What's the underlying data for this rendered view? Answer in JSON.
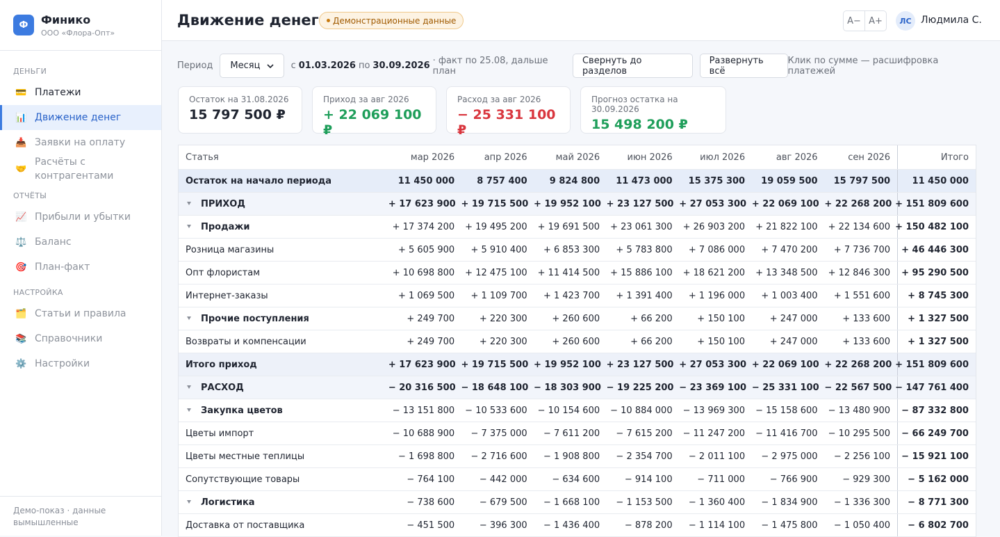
{
  "sidebar": {
    "logo": "Ф",
    "app": "Финико",
    "org": "ООО «Флора-Опт»",
    "sections": [
      {
        "title": "ДЕНЬГИ",
        "items": [
          {
            "icon": "💳",
            "label": "Платежи"
          },
          {
            "icon": "📊",
            "label": "Движение денег",
            "active": true
          },
          {
            "icon": "📥",
            "label": "Заявки на оплату",
            "disabled": true
          },
          {
            "icon": "🤝",
            "label": "Расчёты с контрагентами",
            "disabled": true
          }
        ]
      },
      {
        "title": "ОТЧЁТЫ",
        "items": [
          {
            "icon": "📈",
            "label": "Прибыли и убытки",
            "disabled": true
          },
          {
            "icon": "⚖️",
            "label": "Баланс",
            "disabled": true
          },
          {
            "icon": "🎯",
            "label": "План-факт",
            "disabled": true
          }
        ]
      },
      {
        "title": "НАСТРОЙКА",
        "items": [
          {
            "icon": "🗂️",
            "label": "Статьи и правила",
            "disabled": true
          },
          {
            "icon": "📚",
            "label": "Справочники",
            "disabled": true
          },
          {
            "icon": "⚙️",
            "label": "Настройки",
            "disabled": true
          }
        ]
      }
    ],
    "footer": "Демо-показ · данные вымышленные"
  },
  "header": {
    "title": "Движение денег",
    "badge": "Демонстрационные данные",
    "font_minus": "A−",
    "font_plus": "A+",
    "avatar": "ЛС",
    "user": "Людмила С."
  },
  "toolbar": {
    "period_label": "Период",
    "period": "Месяц",
    "from_word": "с",
    "from": "01.03.2026",
    "to_word": "по",
    "to": "30.09.2026",
    "note": "· факт по 25.08, дальше план",
    "collapse": "Свернуть до разделов",
    "expand": "Развернуть всё",
    "hint": "Клик по сумме — расшифровка платежей"
  },
  "cards": [
    {
      "label": "Остаток на 31.08.2026",
      "value": "15 797 500 ₽",
      "tone": "neutral"
    },
    {
      "label": "Приход за авг 2026",
      "value": "+ 22 069 100 ₽",
      "tone": "positive"
    },
    {
      "label": "Расход за авг 2026",
      "value": "− 25 331 100 ₽",
      "tone": "negative"
    },
    {
      "label": "Прогноз остатка на 30.09.2026",
      "value": "15 498 200 ₽",
      "tone": "positive"
    }
  ],
  "table": {
    "columns": [
      "Статья",
      "мар 2026",
      "апр 2026",
      "май 2026",
      "июн 2026",
      "июл 2026",
      "авг 2026",
      "сен 2026",
      "Итого"
    ],
    "rows": [
      {
        "kind": "balance",
        "label": "Остаток на начало периода",
        "cells": [
          "11 450 000",
          "8 757 400",
          "9 824 800",
          "11 473 000",
          "15 375 300",
          "19 059 500",
          "15 797 500",
          "11 450 000"
        ]
      },
      {
        "kind": "section",
        "label": "ПРИХОД",
        "cells": [
          "+ 17 623 900",
          "+ 19 715 500",
          "+ 19 952 100",
          "+ 23 127 500",
          "+ 27 053 300",
          "+ 22 069 100",
          "+ 22 268 200",
          "+ 151 809 600"
        ]
      },
      {
        "kind": "group",
        "label": "Продажи",
        "cells": [
          "+ 17 374 200",
          "+ 19 495 200",
          "+ 19 691 500",
          "+ 23 061 300",
          "+ 26 903 200",
          "+ 21 822 100",
          "+ 22 134 600",
          "+ 150 482 100"
        ]
      },
      {
        "kind": "item",
        "label": "Розница магазины",
        "cells": [
          "+ 5 605 900",
          "+ 5 910 400",
          "+ 6 853 300",
          "+ 5 783 800",
          "+ 7 086 000",
          "+ 7 470 200",
          "+ 7 736 700",
          "+ 46 446 300"
        ]
      },
      {
        "kind": "item",
        "label": "Опт флористам",
        "cells": [
          "+ 10 698 800",
          "+ 12 475 100",
          "+ 11 414 500",
          "+ 15 886 100",
          "+ 18 621 200",
          "+ 13 348 500",
          "+ 12 846 300",
          "+ 95 290 500"
        ]
      },
      {
        "kind": "item",
        "label": "Интернет-заказы",
        "cells": [
          "+ 1 069 500",
          "+ 1 109 700",
          "+ 1 423 700",
          "+ 1 391 400",
          "+ 1 196 000",
          "+ 1 003 400",
          "+ 1 551 600",
          "+ 8 745 300"
        ]
      },
      {
        "kind": "group",
        "label": "Прочие поступления",
        "cells": [
          "+ 249 700",
          "+ 220 300",
          "+ 260 600",
          "+ 66 200",
          "+ 150 100",
          "+ 247 000",
          "+ 133 600",
          "+ 1 327 500"
        ]
      },
      {
        "kind": "item",
        "label": "Возвраты и компенсации",
        "cells": [
          "+ 249 700",
          "+ 220 300",
          "+ 260 600",
          "+ 66 200",
          "+ 150 100",
          "+ 247 000",
          "+ 133 600",
          "+ 1 327 500"
        ]
      },
      {
        "kind": "total",
        "label": "Итого приход",
        "cells": [
          "+ 17 623 900",
          "+ 19 715 500",
          "+ 19 952 100",
          "+ 23 127 500",
          "+ 27 053 300",
          "+ 22 069 100",
          "+ 22 268 200",
          "+ 151 809 600"
        ]
      },
      {
        "kind": "section",
        "label": "РАСХОД",
        "cells": [
          "− 20 316 500",
          "− 18 648 100",
          "− 18 303 900",
          "− 19 225 200",
          "− 23 369 100",
          "− 25 331 100",
          "− 22 567 500",
          "− 147 761 400"
        ]
      },
      {
        "kind": "group",
        "label": "Закупка цветов",
        "cells": [
          "− 13 151 800",
          "− 10 533 600",
          "− 10 154 600",
          "− 10 884 000",
          "− 13 969 300",
          "− 15 158 600",
          "− 13 480 900",
          "− 87 332 800"
        ]
      },
      {
        "kind": "item",
        "label": "Цветы импорт",
        "cells": [
          "− 10 688 900",
          "− 7 375 000",
          "− 7 611 200",
          "− 7 615 200",
          "− 11 247 200",
          "− 11 416 700",
          "− 10 295 500",
          "− 66 249 700"
        ]
      },
      {
        "kind": "item",
        "label": "Цветы местные теплицы",
        "cells": [
          "− 1 698 800",
          "− 2 716 600",
          "− 1 908 800",
          "− 2 354 700",
          "− 2 011 100",
          "− 2 975 000",
          "− 2 256 100",
          "− 15 921 100"
        ]
      },
      {
        "kind": "item",
        "label": "Сопутствующие товары",
        "cells": [
          "− 764 100",
          "− 442 000",
          "− 634 600",
          "− 914 100",
          "− 711 000",
          "− 766 900",
          "− 929 300",
          "− 5 162 000"
        ]
      },
      {
        "kind": "group",
        "label": "Логистика",
        "cells": [
          "− 738 600",
          "− 679 500",
          "− 1 668 100",
          "− 1 153 500",
          "− 1 360 400",
          "− 1 834 900",
          "− 1 336 300",
          "− 8 771 300"
        ]
      },
      {
        "kind": "item",
        "label": "Доставка от поставщика",
        "cells": [
          "− 451 500",
          "− 396 300",
          "− 1 436 400",
          "− 878 200",
          "− 1 114 100",
          "− 1 475 800",
          "− 1 050 400",
          "− 6 802 700"
        ]
      }
    ]
  }
}
